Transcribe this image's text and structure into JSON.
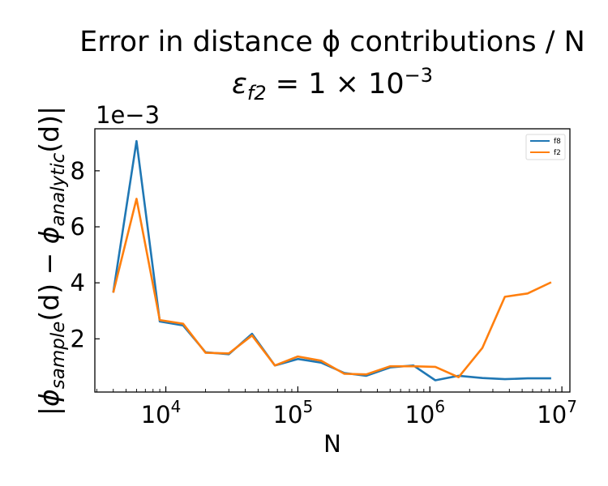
{
  "chart_data": {
    "type": "line",
    "title_line1": "Error in distance ϕ contributions / N",
    "title_line2_main": "ε",
    "title_line2_sub": "f2",
    "title_line2_rest": " = 1 × 10",
    "title_line2_exp": "−3",
    "xlabel": "N",
    "ylabel_parts": {
      "open": "|",
      "phi1": "ϕ",
      "sub1": "sample",
      "mid": "(d) − ",
      "phi2": "ϕ",
      "sub2": "analytic",
      "close": "(d)|"
    },
    "y_offset_text": "1e−3",
    "xscale": "log",
    "xlim": [
      2900,
      11500000
    ],
    "ylim": [
      0.0001,
      0.0095
    ],
    "x_ticks": [
      {
        "value": 10000,
        "base": "10",
        "exp": "4"
      },
      {
        "value": 100000,
        "base": "10",
        "exp": "5"
      },
      {
        "value": 1000000,
        "base": "10",
        "exp": "6"
      },
      {
        "value": 10000000,
        "base": "10",
        "exp": "7"
      }
    ],
    "y_ticks": [
      {
        "value": 0.002,
        "label": "2"
      },
      {
        "value": 0.004,
        "label": "4"
      },
      {
        "value": 0.006,
        "label": "6"
      },
      {
        "value": 0.008,
        "label": "8"
      }
    ],
    "grid": false,
    "legend_position": "top-right",
    "x": [
      4000,
      6000,
      9000,
      13500,
      20000,
      30000,
      45000,
      67000,
      100000,
      150000,
      225000,
      330000,
      500000,
      750000,
      1100000,
      1650000,
      2500000,
      3700000,
      5500000,
      8300000
    ],
    "series": [
      {
        "name": "f8",
        "color": "#1f77b4",
        "values": [
          0.00365,
          0.00906,
          0.00262,
          0.00248,
          0.00152,
          0.00145,
          0.00218,
          0.00105,
          0.00128,
          0.00115,
          0.00078,
          0.00068,
          0.00098,
          0.00105,
          0.00052,
          0.00068,
          0.0006,
          0.00056,
          0.00059,
          0.00059
        ]
      },
      {
        "name": "f2",
        "color": "#ff7f0e",
        "values": [
          0.00365,
          0.007,
          0.00267,
          0.00254,
          0.0015,
          0.00148,
          0.00212,
          0.00105,
          0.00137,
          0.00122,
          0.00075,
          0.00073,
          0.00102,
          0.00102,
          0.001,
          0.00063,
          0.00168,
          0.0035,
          0.00362,
          0.00402
        ]
      }
    ]
  }
}
